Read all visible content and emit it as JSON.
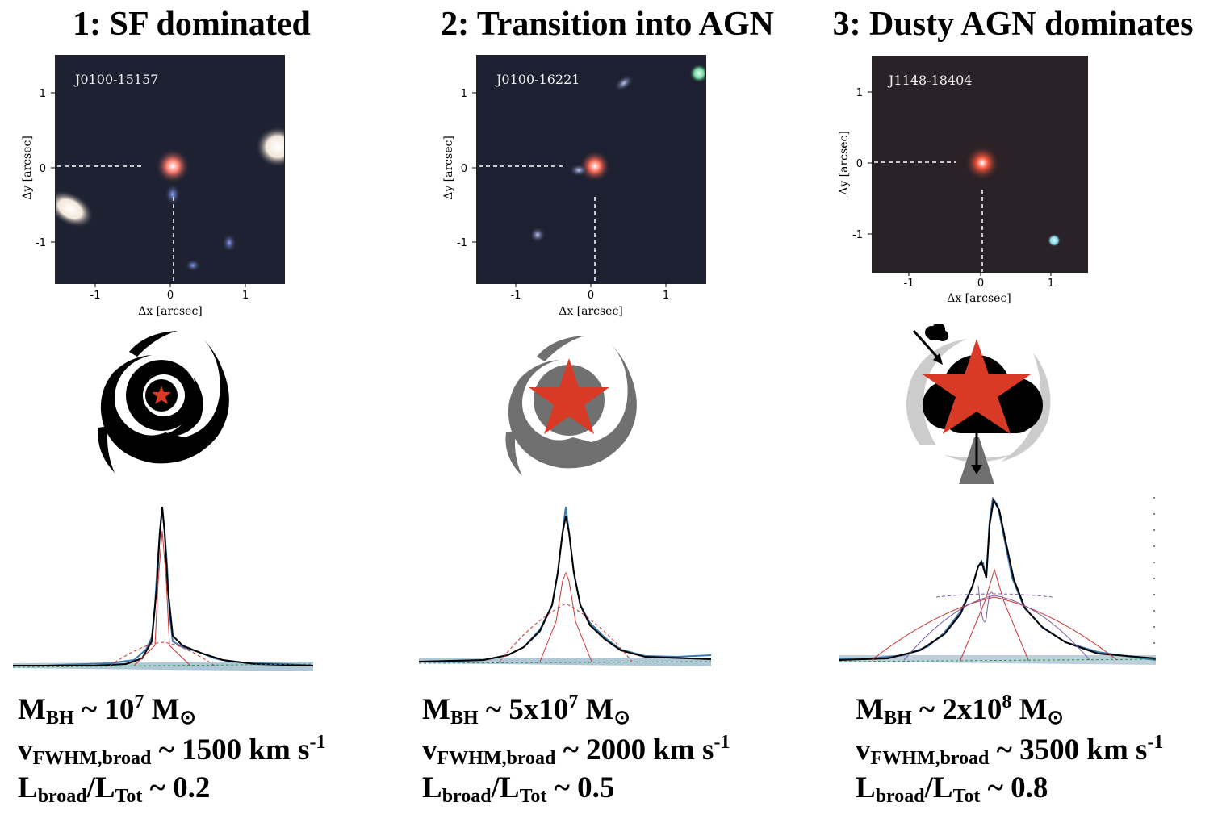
{
  "panels": [
    {
      "title": "1: SF dominated",
      "object": "J0100-15157",
      "xlabel": "Δx [arcsec]",
      "ylabel": "Δy [arcsec]",
      "xticks": [
        "-1",
        "0",
        "1"
      ],
      "yticks": [
        "1",
        "0",
        "-1"
      ],
      "icon": "spiral-galaxy-small-star-icon",
      "mbh": {
        "prefix": "M",
        "sub": "BH",
        "value": " ~ 10",
        "sup": "7",
        "unit": " M",
        "unit_symbol": "⊙"
      },
      "vfwhm": {
        "prefix": "v",
        "sub": "FWHM,broad",
        "value": " ~ 1500 km s",
        "sup": "-1"
      },
      "lratio": {
        "p1": "L",
        "sub1": "broad",
        "mid": "/L",
        "sub2": "Tot",
        "value": " ~ 0.2"
      }
    },
    {
      "title": "2: Transition into AGN",
      "object": "J0100-16221",
      "xlabel": "Δx [arcsec]",
      "ylabel": "Δy [arcsec]",
      "xticks": [
        "-1",
        "0",
        "1"
      ],
      "yticks": [
        "1",
        "0",
        "-1"
      ],
      "icon": "grey-spiral-large-star-icon",
      "mbh": {
        "prefix": "M",
        "sub": "BH",
        "value": " ~ 5x10",
        "sup": "7",
        "unit": " M",
        "unit_symbol": "⊙"
      },
      "vfwhm": {
        "prefix": "v",
        "sub": "FWHM,broad",
        "value": " ~ 2000 km s",
        "sup": "-1"
      },
      "lratio": {
        "p1": "L",
        "sub1": "broad",
        "mid": "/L",
        "sub2": "Tot",
        "value": " ~ 0.5"
      }
    },
    {
      "title": "3: Dusty AGN dominates",
      "object": "J1148-18404",
      "xlabel": "Δx [arcsec]",
      "ylabel": "Δy [arcsec]",
      "xticks": [
        "-1",
        "0",
        "1"
      ],
      "yticks": [
        "1",
        "0",
        "-1"
      ],
      "icon": "dusty-agn-cloud-star-icon",
      "mbh": {
        "prefix": "M",
        "sub": "BH",
        "value": " ~ 2x10",
        "sup": "8",
        "unit": " M",
        "unit_symbol": "⊙"
      },
      "vfwhm": {
        "prefix": "v",
        "sub": "FWHM,broad",
        "value": " ~ 3500 km s",
        "sup": "-1"
      },
      "lratio": {
        "p1": "L",
        "sub1": "broad",
        "mid": "/L",
        "sub2": "Tot",
        "value": " ~ 0.8"
      }
    }
  ],
  "colors": {
    "star": "#d93a26",
    "spiral1": "#000000",
    "spiral2": "#707070",
    "spiral3": "#cccccc",
    "spectrum_data": "#3a78b0",
    "model_total": "#000000",
    "model_narrow": "#cc3333",
    "model_outflow": "#7b5aa6",
    "continuum": "#2e8b57"
  }
}
